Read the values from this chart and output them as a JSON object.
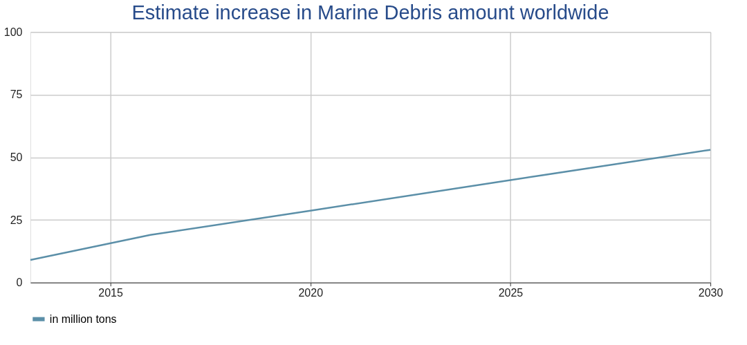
{
  "chart_data": {
    "type": "line",
    "title": "Estimate increase in Marine Debris amount worldwide",
    "x": [
      2013,
      2016,
      2020,
      2025,
      2030
    ],
    "series": [
      {
        "name": "in million tons",
        "color": "#5b8fa8",
        "values": [
          9,
          19,
          28.7,
          40.9,
          53
        ]
      }
    ],
    "xlim": [
      2013,
      2030
    ],
    "xticks": [
      2015,
      2020,
      2025,
      2030
    ],
    "ylim": [
      0,
      100
    ],
    "yticks": [
      0,
      25,
      50,
      75,
      100
    ],
    "grid": true,
    "legend": "bottom",
    "marker": "none",
    "line_style": "solid"
  }
}
